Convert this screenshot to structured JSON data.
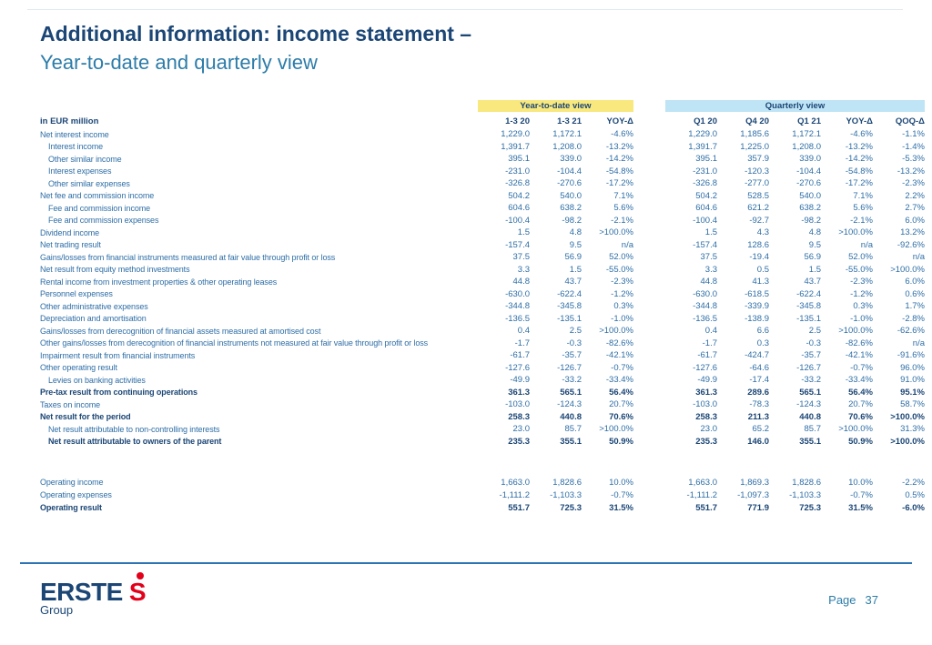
{
  "slide": {
    "title_line1": "Additional information: income statement –",
    "title_line2": "Year-to-date and quarterly view",
    "page_label": "Page",
    "page_number": "37"
  },
  "logo": {
    "brand": "ERSTE",
    "mark": "S",
    "sub": "Group"
  },
  "colors": {
    "title": "#1b4675",
    "subtitle": "#2d7ca9",
    "row_text": "#2e6ea6",
    "bold_text": "#1b4675",
    "ytd_band": "#f9e87e",
    "quarterly_band": "#bfe4f5",
    "footer_rule": "#2e74b5",
    "logo_red": "#e2001a"
  },
  "table": {
    "group_headers": {
      "ytd": "Year-to-date view",
      "quarterly": "Quarterly view"
    },
    "unit_label": "in EUR million",
    "columns": [
      "1-3 20",
      "1-3 21",
      "YOY-Δ",
      "Q1 20",
      "Q4 20",
      "Q1 21",
      "YOY-Δ",
      "QOQ-Δ"
    ],
    "rows": [
      {
        "label": "Net interest income",
        "indent": 0,
        "bold": false,
        "values": [
          "1,229.0",
          "1,172.1",
          "-4.6%",
          "1,229.0",
          "1,185.6",
          "1,172.1",
          "-4.6%",
          "-1.1%"
        ]
      },
      {
        "label": "Interest income",
        "indent": 1,
        "bold": false,
        "values": [
          "1,391.7",
          "1,208.0",
          "-13.2%",
          "1,391.7",
          "1,225.0",
          "1,208.0",
          "-13.2%",
          "-1.4%"
        ]
      },
      {
        "label": "Other similar income",
        "indent": 1,
        "bold": false,
        "values": [
          "395.1",
          "339.0",
          "-14.2%",
          "395.1",
          "357.9",
          "339.0",
          "-14.2%",
          "-5.3%"
        ]
      },
      {
        "label": "Interest expenses",
        "indent": 1,
        "bold": false,
        "values": [
          "-231.0",
          "-104.4",
          "-54.8%",
          "-231.0",
          "-120.3",
          "-104.4",
          "-54.8%",
          "-13.2%"
        ]
      },
      {
        "label": "Other similar expenses",
        "indent": 1,
        "bold": false,
        "values": [
          "-326.8",
          "-270.6",
          "-17.2%",
          "-326.8",
          "-277.0",
          "-270.6",
          "-17.2%",
          "-2.3%"
        ]
      },
      {
        "label": "Net fee and commission income",
        "indent": 0,
        "bold": false,
        "values": [
          "504.2",
          "540.0",
          "7.1%",
          "504.2",
          "528.5",
          "540.0",
          "7.1%",
          "2.2%"
        ]
      },
      {
        "label": "Fee and commission income",
        "indent": 1,
        "bold": false,
        "values": [
          "604.6",
          "638.2",
          "5.6%",
          "604.6",
          "621.2",
          "638.2",
          "5.6%",
          "2.7%"
        ]
      },
      {
        "label": "Fee and commission expenses",
        "indent": 1,
        "bold": false,
        "values": [
          "-100.4",
          "-98.2",
          "-2.1%",
          "-100.4",
          "-92.7",
          "-98.2",
          "-2.1%",
          "6.0%"
        ]
      },
      {
        "label": "Dividend income",
        "indent": 0,
        "bold": false,
        "values": [
          "1.5",
          "4.8",
          "&gt;100.0%",
          "1.5",
          "4.3",
          "4.8",
          "&gt;100.0%",
          "13.2%"
        ]
      },
      {
        "label": "Net trading result",
        "indent": 0,
        "bold": false,
        "values": [
          "-157.4",
          "9.5",
          "n/a",
          "-157.4",
          "128.6",
          "9.5",
          "n/a",
          "-92.6%"
        ]
      },
      {
        "label": "Gains/losses from financial instruments measured at fair value through profit or loss",
        "indent": 0,
        "bold": false,
        "values": [
          "37.5",
          "56.9",
          "52.0%",
          "37.5",
          "-19.4",
          "56.9",
          "52.0%",
          "n/a"
        ]
      },
      {
        "label": "Net result from equity method investments",
        "indent": 0,
        "bold": false,
        "values": [
          "3.3",
          "1.5",
          "-55.0%",
          "3.3",
          "0.5",
          "1.5",
          "-55.0%",
          "&gt;100.0%"
        ]
      },
      {
        "label": "Rental income from investment properties & other operating leases",
        "indent": 0,
        "bold": false,
        "values": [
          "44.8",
          "43.7",
          "-2.3%",
          "44.8",
          "41.3",
          "43.7",
          "-2.3%",
          "6.0%"
        ]
      },
      {
        "label": "Personnel expenses",
        "indent": 0,
        "bold": false,
        "values": [
          "-630.0",
          "-622.4",
          "-1.2%",
          "-630.0",
          "-618.5",
          "-622.4",
          "-1.2%",
          "0.6%"
        ]
      },
      {
        "label": "Other administrative expenses",
        "indent": 0,
        "bold": false,
        "values": [
          "-344.8",
          "-345.8",
          "0.3%",
          "-344.8",
          "-339.9",
          "-345.8",
          "0.3%",
          "1.7%"
        ]
      },
      {
        "label": "Depreciation and amortisation",
        "indent": 0,
        "bold": false,
        "values": [
          "-136.5",
          "-135.1",
          "-1.0%",
          "-136.5",
          "-138.9",
          "-135.1",
          "-1.0%",
          "-2.8%"
        ]
      },
      {
        "label": "Gains/losses from derecognition of financial assets measured at amortised cost",
        "indent": 0,
        "bold": false,
        "values": [
          "0.4",
          "2.5",
          "&gt;100.0%",
          "0.4",
          "6.6",
          "2.5",
          "&gt;100.0%",
          "-62.6%"
        ]
      },
      {
        "label": "Other gains/losses from derecognition of financial instruments not measured at fair value through profit or loss",
        "indent": 0,
        "bold": false,
        "values": [
          "-1.7",
          "-0.3",
          "-82.6%",
          "-1.7",
          "0.3",
          "-0.3",
          "-82.6%",
          "n/a"
        ]
      },
      {
        "label": "Impairment result from financial instruments",
        "indent": 0,
        "bold": false,
        "values": [
          "-61.7",
          "-35.7",
          "-42.1%",
          "-61.7",
          "-424.7",
          "-35.7",
          "-42.1%",
          "-91.6%"
        ]
      },
      {
        "label": "Other operating result",
        "indent": 0,
        "bold": false,
        "values": [
          "-127.6",
          "-126.7",
          "-0.7%",
          "-127.6",
          "-64.6",
          "-126.7",
          "-0.7%",
          "96.0%"
        ]
      },
      {
        "label": "Levies on banking activities",
        "indent": 1,
        "bold": false,
        "values": [
          "-49.9",
          "-33.2",
          "-33.4%",
          "-49.9",
          "-17.4",
          "-33.2",
          "-33.4%",
          "91.0%"
        ]
      },
      {
        "label": "Pre-tax result from continuing operations",
        "indent": 0,
        "bold": true,
        "values": [
          "361.3",
          "565.1",
          "56.4%",
          "361.3",
          "289.6",
          "565.1",
          "56.4%",
          "95.1%"
        ]
      },
      {
        "label": "Taxes on income",
        "indent": 0,
        "bold": false,
        "values": [
          "-103.0",
          "-124.3",
          "20.7%",
          "-103.0",
          "-78.3",
          "-124.3",
          "20.7%",
          "58.7%"
        ]
      },
      {
        "label": "Net result for the period",
        "indent": 0,
        "bold": true,
        "values": [
          "258.3",
          "440.8",
          "70.6%",
          "258.3",
          "211.3",
          "440.8",
          "70.6%",
          "&gt;100.0%"
        ]
      },
      {
        "label": "Net result attributable to non-controlling interests",
        "indent": 1,
        "bold": false,
        "values": [
          "23.0",
          "85.7",
          "&gt;100.0%",
          "23.0",
          "65.2",
          "85.7",
          "&gt;100.0%",
          "31.3%"
        ]
      },
      {
        "label": "Net result attributable to owners of the parent",
        "indent": 1,
        "bold": true,
        "values": [
          "235.3",
          "355.1",
          "50.9%",
          "235.3",
          "146.0",
          "355.1",
          "50.9%",
          "&gt;100.0%"
        ]
      }
    ],
    "operating_rows": [
      {
        "label": "Operating income",
        "indent": 0,
        "bold": false,
        "values": [
          "1,663.0",
          "1,828.6",
          "10.0%",
          "1,663.0",
          "1,869.3",
          "1,828.6",
          "10.0%",
          "-2.2%"
        ]
      },
      {
        "label": "Operating expenses",
        "indent": 0,
        "bold": false,
        "values": [
          "-1,111.2",
          "-1,103.3",
          "-0.7%",
          "-1,111.2",
          "-1,097.3",
          "-1,103.3",
          "-0.7%",
          "0.5%"
        ]
      },
      {
        "label": "Operating result",
        "indent": 0,
        "bold": true,
        "values": [
          "551.7",
          "725.3",
          "31.5%",
          "551.7",
          "771.9",
          "725.3",
          "31.5%",
          "-6.0%"
        ]
      }
    ]
  }
}
